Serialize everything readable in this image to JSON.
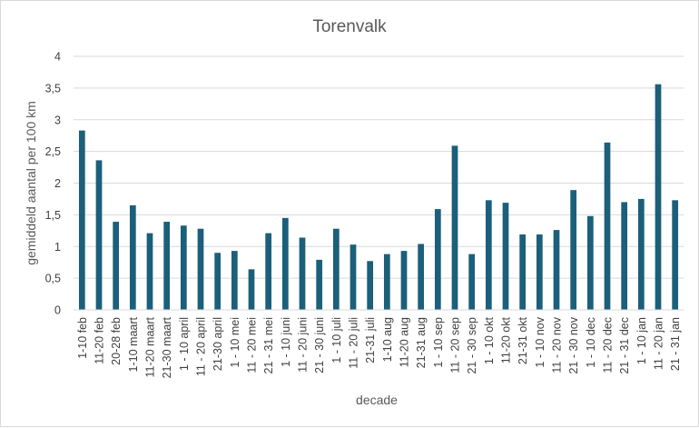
{
  "chart_data": {
    "type": "bar",
    "title": "Torenvalk",
    "xlabel": "decade",
    "ylabel": "gemiddeld aantal per 100 km",
    "ylim": [
      0,
      4
    ],
    "yticks": [
      "0",
      "0,5",
      "1",
      "1,5",
      "2",
      "2,5",
      "3",
      "3,5",
      "4"
    ],
    "grid": true,
    "bar_color": "#1b5f7a",
    "categories": [
      "1-10 feb",
      "11-20 feb",
      "20-28 feb",
      "1-10 maart",
      "11-20 maart",
      "21-30 maart",
      "1 - 10 april",
      "11 - 20 april",
      "21-30 april",
      "1 - 10 mei",
      "11 - 20 mei",
      "21 - 31 mei",
      "1 - 10 juni",
      "11 - 20 juni",
      "21 - 30 juni",
      "1 - 10 juli",
      "11 - 20 juli",
      "21-31 juli",
      "1-10 aug",
      "11-20 aug",
      "21-31 aug",
      "1 - 10 sep",
      "11 - 20 sep",
      "21 - 30 sep",
      "1 - 10 okt",
      "11-20 okt",
      "21-31 okt",
      "1 - 10 nov",
      "11 - 20 nov",
      "21 - 30 nov",
      "1 - 10 dec",
      "11 - 20 dec",
      "21 - 31 dec",
      "1 - 10 jan",
      "11 - 20 jan",
      "21 - 31 jan"
    ],
    "values": [
      2.83,
      2.36,
      1.39,
      1.65,
      1.21,
      1.39,
      1.33,
      1.28,
      0.9,
      0.93,
      0.64,
      1.21,
      1.45,
      1.14,
      0.79,
      1.28,
      1.03,
      0.77,
      0.88,
      0.93,
      1.04,
      1.59,
      2.59,
      0.88,
      1.73,
      1.69,
      1.19,
      1.19,
      1.26,
      1.89,
      1.48,
      2.64,
      1.7,
      1.75,
      3.56,
      1.73
    ]
  }
}
